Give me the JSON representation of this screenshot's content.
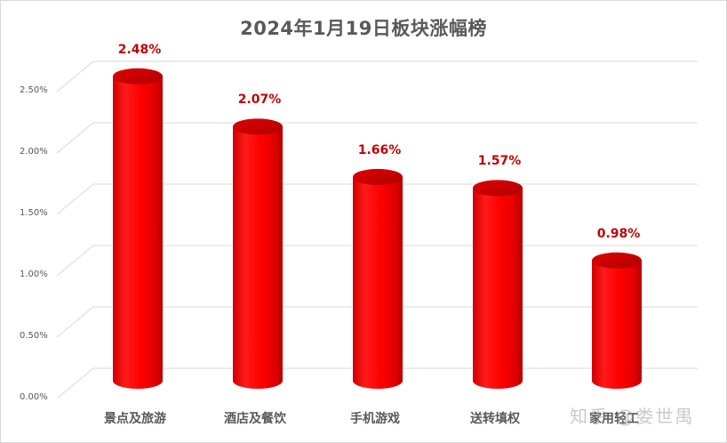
{
  "title": "2024年1月19日板块涨幅榜",
  "watermark": "知乎 @娄世禺",
  "colors": {
    "bar": "#ff0000",
    "bar_dark": "#c00000",
    "value_label": "#c00000",
    "axis_text": "#595959",
    "gridline": "#d9d9d9"
  },
  "axis": {
    "y_ticks": [
      "0.00%",
      "0.50%",
      "1.00%",
      "1.50%",
      "2.00%",
      "2.50%"
    ]
  },
  "bars": [
    {
      "category": "景点及旅游",
      "label": "2.48%"
    },
    {
      "category": "酒店及餐饮",
      "label": "2.07%"
    },
    {
      "category": "手机游戏",
      "label": "1.66%"
    },
    {
      "category": "送转填权",
      "label": "1.57%"
    },
    {
      "category": "家用轻工",
      "label": "0.98%"
    }
  ],
  "chart_data": {
    "type": "bar",
    "title": "2024年1月19日板块涨幅榜",
    "categories": [
      "景点及旅游",
      "酒店及餐饮",
      "手机游戏",
      "送转填权",
      "家用轻工"
    ],
    "values": [
      2.48,
      2.07,
      1.66,
      1.57,
      0.98
    ],
    "value_labels": [
      "2.48%",
      "2.07%",
      "1.66%",
      "1.57%",
      "0.98%"
    ],
    "xlabel": "",
    "ylabel": "",
    "ylim": [
      0,
      2.5
    ],
    "y_ticks": [
      "0.00%",
      "0.50%",
      "1.00%",
      "1.50%",
      "2.00%",
      "2.50%"
    ],
    "grid": true,
    "legend": "none",
    "style": "3D cylinder columns, red"
  }
}
